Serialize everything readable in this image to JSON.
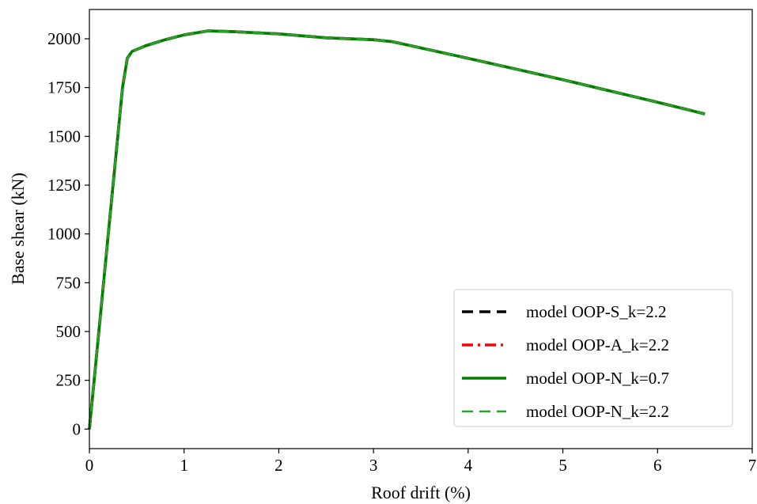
{
  "chart_data": {
    "type": "line",
    "title": "",
    "xlabel": "Roof drift (%)",
    "ylabel": "Base shear (kN)",
    "xlim": [
      0,
      7
    ],
    "ylim": [
      -100,
      2150
    ],
    "x_ticks": [
      0,
      1,
      2,
      3,
      4,
      5,
      6,
      7
    ],
    "x_tick_labels": [
      "0",
      "1",
      "2",
      "3",
      "4",
      "5",
      "6",
      "7"
    ],
    "y_ticks": [
      0,
      250,
      500,
      750,
      1000,
      1250,
      1500,
      1750,
      2000
    ],
    "y_tick_labels": [
      "0",
      "250",
      "500",
      "750",
      "1000",
      "1250",
      "1500",
      "1750",
      "2000"
    ],
    "grid": false,
    "legend_position": "lower-right",
    "series": [
      {
        "name": "model OOP-S_k=2.2",
        "color": "#000000",
        "style": "dashed",
        "x": [
          0,
          0.05,
          0.2,
          0.3,
          0.35,
          0.4,
          0.45,
          0.6,
          0.8,
          1.0,
          1.25,
          1.5,
          2.0,
          2.5,
          3.0,
          3.2,
          4.0,
          5.0,
          6.0,
          6.5
        ],
        "y": [
          0,
          250,
          1000,
          1500,
          1750,
          1900,
          1935,
          1965,
          1995,
          2020,
          2040,
          2037,
          2025,
          2005,
          1995,
          1985,
          1900,
          1790,
          1675,
          1615
        ]
      },
      {
        "name": "model OOP-A_k=2.2",
        "color": "#ff0000",
        "style": "dashdot",
        "x": [
          0,
          0.05,
          0.2,
          0.3,
          0.35,
          0.4,
          0.45,
          0.6,
          0.8,
          1.0,
          1.25,
          1.5,
          2.0,
          2.5,
          3.0,
          3.2,
          4.0,
          5.0,
          6.0,
          6.5
        ],
        "y": [
          0,
          250,
          1000,
          1500,
          1750,
          1900,
          1935,
          1965,
          1995,
          2020,
          2040,
          2037,
          2025,
          2005,
          1995,
          1985,
          1900,
          1790,
          1675,
          1615
        ]
      },
      {
        "name": "model OOP-N_k=0.7",
        "color": "#008000",
        "style": "solid",
        "x": [
          0,
          0.05,
          0.2,
          0.3,
          0.35,
          0.4,
          0.45,
          0.6,
          0.8,
          1.0,
          1.25,
          1.5,
          2.0,
          2.5,
          3.0,
          3.2,
          4.0,
          5.0,
          6.0,
          6.5
        ],
        "y": [
          0,
          250,
          1000,
          1500,
          1750,
          1900,
          1935,
          1965,
          1995,
          2020,
          2040,
          2037,
          2025,
          2005,
          1995,
          1985,
          1900,
          1790,
          1675,
          1615
        ]
      },
      {
        "name": "model OOP-N_k=2.2",
        "color": "#2ca02c",
        "style": "dashed",
        "x": [
          0,
          0.05,
          0.2,
          0.3,
          0.35,
          0.4,
          0.45,
          0.6,
          0.8,
          1.0,
          1.25,
          1.5,
          2.0,
          2.5,
          3.0,
          3.2,
          4.0,
          5.0,
          6.0,
          6.5
        ],
        "y": [
          0,
          250,
          1000,
          1500,
          1750,
          1900,
          1935,
          1965,
          1995,
          2020,
          2040,
          2037,
          2025,
          2005,
          1995,
          1985,
          1900,
          1790,
          1675,
          1615
        ]
      }
    ]
  }
}
